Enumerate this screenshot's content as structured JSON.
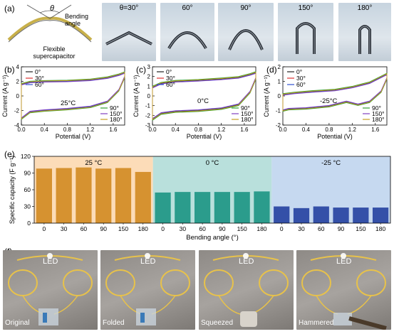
{
  "panels": {
    "a": "(a)",
    "b": "(b)",
    "c": "(c)",
    "d": "(d)",
    "e": "(e)",
    "f": "(f)"
  },
  "panel_a": {
    "theta_symbol": "θ",
    "bending_angle_label": [
      "Bending",
      "angle"
    ],
    "device_label": [
      "Flexible",
      "supercapacitor"
    ],
    "photo_labels": [
      "θ=30°",
      "60°",
      "90°",
      "150°",
      "180°"
    ]
  },
  "chart_data": [
    {
      "type": "line",
      "panel": "b",
      "annotation": "25°C",
      "xlabel": "Potential (V)",
      "ylabel": "Current (A g⁻¹)",
      "xlim": [
        0,
        1.8
      ],
      "ylim": [
        -4,
        4
      ],
      "xticks": [
        "0.0",
        "0.4",
        "0.8",
        "1.2",
        "1.6"
      ],
      "yticks": [
        "-4",
        "-2",
        "0",
        "2",
        "4"
      ],
      "series": [
        {
          "name": "0°",
          "color": "#222222",
          "offset": 0.0
        },
        {
          "name": "30°",
          "color": "#e03030",
          "offset": 0.08
        },
        {
          "name": "60°",
          "color": "#3050d0",
          "offset": -0.05
        },
        {
          "name": "90°",
          "color": "#30a030",
          "offset": 0.12
        },
        {
          "name": "150°",
          "color": "#8040c0",
          "offset": -0.1
        },
        {
          "name": "180°",
          "color": "#c8a020",
          "offset": 0.05
        }
      ],
      "upper": [
        [
          0,
          1.6
        ],
        [
          0.15,
          1.9
        ],
        [
          0.4,
          2.0
        ],
        [
          0.8,
          2.05
        ],
        [
          1.2,
          2.2
        ],
        [
          1.5,
          2.5
        ],
        [
          1.7,
          2.9
        ],
        [
          1.8,
          3.2
        ]
      ],
      "lower": [
        [
          1.8,
          2.6
        ],
        [
          1.7,
          0.8
        ],
        [
          1.5,
          -0.8
        ],
        [
          1.2,
          -1.5
        ],
        [
          0.8,
          -1.8
        ],
        [
          0.4,
          -2.0
        ],
        [
          0.15,
          -2.2
        ],
        [
          0,
          -3.1
        ]
      ]
    },
    {
      "type": "line",
      "panel": "c",
      "annotation": "0°C",
      "xlabel": "Potential (V)",
      "ylabel": "Current (A g⁻¹)",
      "xlim": [
        0,
        1.8
      ],
      "ylim": [
        -3,
        3
      ],
      "xticks": [
        "0.0",
        "0.4",
        "0.8",
        "1.2",
        "1.6"
      ],
      "yticks": [
        "-3",
        "-2",
        "-1",
        "0",
        "1",
        "2",
        "3"
      ],
      "series": [
        {
          "name": "0°",
          "color": "#222222",
          "offset": 0.0
        },
        {
          "name": "30°",
          "color": "#e03030",
          "offset": 0.06
        },
        {
          "name": "60°",
          "color": "#3050d0",
          "offset": -0.05
        },
        {
          "name": "90°",
          "color": "#30a030",
          "offset": 0.1
        },
        {
          "name": "150°",
          "color": "#8040c0",
          "offset": -0.08
        },
        {
          "name": "180°",
          "color": "#c8a020",
          "offset": 0.04
        }
      ],
      "upper": [
        [
          0,
          0.9
        ],
        [
          0.15,
          1.3
        ],
        [
          0.4,
          1.5
        ],
        [
          0.8,
          1.6
        ],
        [
          1.2,
          1.75
        ],
        [
          1.5,
          1.9
        ],
        [
          1.7,
          2.2
        ],
        [
          1.8,
          2.4
        ]
      ],
      "lower": [
        [
          1.8,
          1.8
        ],
        [
          1.7,
          0.4
        ],
        [
          1.5,
          -0.9
        ],
        [
          1.2,
          -1.3
        ],
        [
          0.8,
          -1.5
        ],
        [
          0.4,
          -1.6
        ],
        [
          0.15,
          -1.8
        ],
        [
          0,
          -2.4
        ]
      ]
    },
    {
      "type": "line",
      "panel": "d",
      "annotation": "-25°C",
      "xlabel": "Potential (V)",
      "ylabel": "Current (A g⁻¹)",
      "xlim": [
        0,
        1.8
      ],
      "ylim": [
        -2,
        2
      ],
      "xticks": [
        "0.0",
        "0.4",
        "0.8",
        "1.2",
        "1.6"
      ],
      "yticks": [
        "-2",
        "-1",
        "0",
        "1",
        "2"
      ],
      "series": [
        {
          "name": "0°",
          "color": "#222222",
          "offset": 0.0
        },
        {
          "name": "30°",
          "color": "#e03030",
          "offset": 0.04
        },
        {
          "name": "60°",
          "color": "#3050d0",
          "offset": -0.03
        },
        {
          "name": "90°",
          "color": "#30a030",
          "offset": 0.06
        },
        {
          "name": "150°",
          "color": "#8040c0",
          "offset": -0.05
        },
        {
          "name": "180°",
          "color": "#c8a020",
          "offset": 0.02
        }
      ],
      "upper": [
        [
          0,
          0.1
        ],
        [
          0.2,
          0.2
        ],
        [
          0.5,
          0.3
        ],
        [
          0.9,
          0.4
        ],
        [
          1.2,
          0.6
        ],
        [
          1.5,
          0.9
        ],
        [
          1.7,
          1.3
        ],
        [
          1.8,
          1.5
        ]
      ],
      "lower": [
        [
          1.8,
          1.2
        ],
        [
          1.7,
          0.3
        ],
        [
          1.5,
          -0.4
        ],
        [
          1.3,
          -0.6
        ],
        [
          1.1,
          -0.4
        ],
        [
          0.8,
          -0.7
        ],
        [
          0.4,
          -0.85
        ],
        [
          0.1,
          -0.9
        ],
        [
          0,
          -1.0
        ]
      ]
    },
    {
      "type": "bar",
      "panel": "e",
      "xlabel": "Bending angle (°)",
      "ylabel": "Specific capacity (F g⁻¹)",
      "ylim": [
        0,
        120
      ],
      "yticks": [
        "0",
        "30",
        "60",
        "90",
        "120"
      ],
      "groups": [
        {
          "label": "25 °C",
          "bg": "#fcdcb8",
          "bar": "#d69230",
          "categories": [
            "0",
            "30",
            "60",
            "90",
            "150",
            "180"
          ],
          "values": [
            98,
            99,
            100,
            98,
            99,
            92
          ]
        },
        {
          "label": "0 °C",
          "bg": "#b9e0dc",
          "bar": "#2b9c8c",
          "categories": [
            "0",
            "30",
            "60",
            "90",
            "150",
            "180"
          ],
          "values": [
            55,
            56,
            56,
            56,
            56,
            57
          ]
        },
        {
          "label": "-25 °C",
          "bg": "#c6d9f0",
          "bar": "#3450a8",
          "categories": [
            "0",
            "30",
            "60",
            "90",
            "150",
            "180"
          ],
          "values": [
            30,
            27,
            30,
            28,
            28,
            28
          ]
        }
      ]
    }
  ],
  "panel_f": {
    "led_label": "LED",
    "photos": [
      "Original",
      "Folded",
      "Squeezed",
      "Hammered"
    ]
  }
}
